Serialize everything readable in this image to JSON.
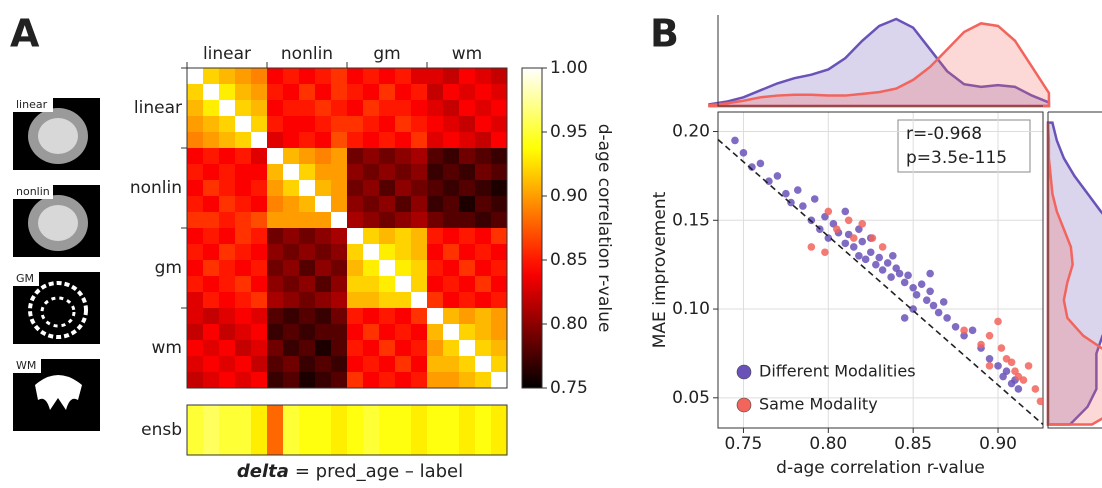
{
  "panel_labels": [
    "A",
    "B"
  ],
  "thumbnails": [
    "linear",
    "nonlin",
    "GM",
    "WM"
  ],
  "chart_data": [
    {
      "type": "heatmap",
      "row_labels": [
        "linear",
        "nonlin",
        "gm",
        "wm"
      ],
      "col_labels": [
        "linear",
        "nonlin",
        "gm",
        "wm"
      ],
      "matrix": [
        [
          1,
          0.92,
          0.91,
          0.9,
          0.89,
          0.84,
          0.85,
          0.84,
          0.85,
          0.86,
          0.84,
          0.85,
          0.84,
          0.85,
          0.83,
          0.83,
          0.82,
          0.84,
          0.83,
          0.82
        ],
        [
          0.92,
          1,
          0.93,
          0.91,
          0.9,
          0.85,
          0.84,
          0.86,
          0.84,
          0.86,
          0.85,
          0.84,
          0.86,
          0.84,
          0.85,
          0.82,
          0.84,
          0.83,
          0.84,
          0.83
        ],
        [
          0.91,
          0.93,
          1,
          0.92,
          0.91,
          0.84,
          0.85,
          0.85,
          0.86,
          0.85,
          0.84,
          0.86,
          0.85,
          0.85,
          0.84,
          0.83,
          0.82,
          0.84,
          0.83,
          0.84
        ],
        [
          0.9,
          0.91,
          0.92,
          1,
          0.92,
          0.85,
          0.84,
          0.84,
          0.85,
          0.86,
          0.86,
          0.85,
          0.84,
          0.86,
          0.85,
          0.84,
          0.83,
          0.82,
          0.84,
          0.83
        ],
        [
          0.89,
          0.9,
          0.91,
          0.92,
          1,
          0.83,
          0.84,
          0.85,
          0.84,
          0.87,
          0.85,
          0.84,
          0.85,
          0.84,
          0.86,
          0.83,
          0.84,
          0.83,
          0.82,
          0.84
        ],
        [
          0.84,
          0.85,
          0.84,
          0.85,
          0.83,
          1,
          0.91,
          0.9,
          0.89,
          0.9,
          0.79,
          0.8,
          0.79,
          0.8,
          0.81,
          0.78,
          0.77,
          0.79,
          0.78,
          0.77
        ],
        [
          0.85,
          0.84,
          0.85,
          0.84,
          0.84,
          0.91,
          1,
          0.92,
          0.9,
          0.9,
          0.8,
          0.79,
          0.8,
          0.79,
          0.8,
          0.77,
          0.78,
          0.77,
          0.79,
          0.78
        ],
        [
          0.84,
          0.86,
          0.85,
          0.84,
          0.85,
          0.9,
          0.92,
          1,
          0.91,
          0.9,
          0.79,
          0.8,
          0.78,
          0.8,
          0.79,
          0.78,
          0.77,
          0.78,
          0.77,
          0.76
        ],
        [
          0.85,
          0.84,
          0.86,
          0.85,
          0.84,
          0.89,
          0.9,
          0.91,
          1,
          0.9,
          0.8,
          0.79,
          0.8,
          0.78,
          0.8,
          0.77,
          0.78,
          0.76,
          0.78,
          0.77
        ],
        [
          0.86,
          0.86,
          0.85,
          0.86,
          0.87,
          0.9,
          0.9,
          0.9,
          0.9,
          1,
          0.81,
          0.8,
          0.79,
          0.8,
          0.81,
          0.79,
          0.78,
          0.78,
          0.77,
          0.78
        ],
        [
          0.84,
          0.85,
          0.84,
          0.86,
          0.85,
          0.79,
          0.8,
          0.79,
          0.8,
          0.81,
          1,
          0.92,
          0.91,
          0.92,
          0.91,
          0.85,
          0.84,
          0.85,
          0.84,
          0.86
        ],
        [
          0.85,
          0.84,
          0.86,
          0.85,
          0.84,
          0.8,
          0.79,
          0.8,
          0.79,
          0.8,
          0.92,
          1,
          0.93,
          0.92,
          0.91,
          0.84,
          0.86,
          0.84,
          0.85,
          0.84
        ],
        [
          0.84,
          0.86,
          0.85,
          0.84,
          0.85,
          0.79,
          0.8,
          0.78,
          0.8,
          0.79,
          0.91,
          0.93,
          1,
          0.93,
          0.92,
          0.85,
          0.84,
          0.86,
          0.84,
          0.85
        ],
        [
          0.85,
          0.84,
          0.85,
          0.86,
          0.84,
          0.8,
          0.79,
          0.8,
          0.78,
          0.8,
          0.92,
          0.92,
          0.93,
          1,
          0.92,
          0.84,
          0.85,
          0.84,
          0.86,
          0.84
        ],
        [
          0.83,
          0.85,
          0.84,
          0.85,
          0.86,
          0.81,
          0.8,
          0.79,
          0.8,
          0.81,
          0.91,
          0.91,
          0.92,
          0.92,
          1,
          0.86,
          0.84,
          0.85,
          0.84,
          0.85
        ],
        [
          0.83,
          0.82,
          0.83,
          0.84,
          0.83,
          0.78,
          0.77,
          0.78,
          0.77,
          0.79,
          0.85,
          0.84,
          0.85,
          0.84,
          0.86,
          1,
          0.91,
          0.9,
          0.91,
          0.9
        ],
        [
          0.82,
          0.84,
          0.82,
          0.83,
          0.84,
          0.77,
          0.78,
          0.77,
          0.78,
          0.78,
          0.84,
          0.86,
          0.84,
          0.85,
          0.84,
          0.91,
          1,
          0.92,
          0.91,
          0.9
        ],
        [
          0.84,
          0.83,
          0.84,
          0.82,
          0.83,
          0.79,
          0.77,
          0.78,
          0.76,
          0.78,
          0.85,
          0.84,
          0.86,
          0.84,
          0.85,
          0.9,
          0.92,
          1,
          0.92,
          0.91
        ],
        [
          0.83,
          0.84,
          0.83,
          0.84,
          0.82,
          0.78,
          0.79,
          0.77,
          0.78,
          0.77,
          0.84,
          0.85,
          0.84,
          0.86,
          0.84,
          0.91,
          0.91,
          0.92,
          1,
          0.92
        ],
        [
          0.82,
          0.83,
          0.84,
          0.83,
          0.84,
          0.77,
          0.78,
          0.76,
          0.77,
          0.78,
          0.86,
          0.84,
          0.85,
          0.84,
          0.85,
          0.9,
          0.9,
          0.91,
          0.92,
          1
        ]
      ],
      "ensemble_label": "ensb",
      "ensemble": [
        0.95,
        0.96,
        0.95,
        0.95,
        0.93,
        0.88,
        0.95,
        0.94,
        0.94,
        0.93,
        0.94,
        0.95,
        0.94,
        0.94,
        0.93,
        0.94,
        0.94,
        0.93,
        0.94,
        0.93
      ],
      "colormap": "hot",
      "colorbar_label": "d-age correlation r-value",
      "clim": [
        0.75,
        1.0
      ],
      "cticks": [
        0.75,
        {
          "value": 0.8,
          "label": "0.80"
        },
        0.85,
        {
          "value": 0.9,
          "label": "0.90"
        },
        0.95,
        {
          "value": 1,
          "label": "1.00"
        }
      ],
      "caption_emphasis": "delta",
      "caption": "= pred_age – label"
    },
    {
      "type": "scatter",
      "xlabel": "d-age correlation r-value",
      "ylabel": "MAE improvement",
      "xlim": [
        0.735,
        0.9265
      ],
      "ylim": [
        0.033,
        0.211
      ],
      "xticks": [
        0.75,
        {
          "value": 0.8,
          "label": "0.80"
        },
        0.85,
        {
          "value": 0.9,
          "label": "0.90"
        }
      ],
      "yticks": [
        0.05,
        {
          "value": 0.1,
          "label": "0.10"
        },
        0.15,
        {
          "value": 0.2,
          "label": "0.20"
        }
      ],
      "grid": true,
      "legend": "lower left",
      "annotation": [
        "r=-0.968",
        "p=3.5e-115"
      ],
      "fit_line": {
        "x": [
          0.735,
          0.9265
        ],
        "y": [
          0.1955,
          0.035
        ]
      },
      "series": [
        {
          "name": "Different Modalities",
          "color": "#6a52b8",
          "x": [
            0.745,
            0.75,
            0.755,
            0.76,
            0.765,
            0.77,
            0.775,
            0.778,
            0.782,
            0.785,
            0.79,
            0.792,
            0.795,
            0.798,
            0.8,
            0.803,
            0.806,
            0.81,
            0.812,
            0.815,
            0.818,
            0.82,
            0.822,
            0.825,
            0.828,
            0.83,
            0.832,
            0.835,
            0.837,
            0.84,
            0.842,
            0.845,
            0.847,
            0.85,
            0.852,
            0.855,
            0.858,
            0.86,
            0.862,
            0.865,
            0.868,
            0.87,
            0.875,
            0.88,
            0.885,
            0.89,
            0.895,
            0.9,
            0.903,
            0.905,
            0.908,
            0.91,
            0.912,
            0.838,
            0.825,
            0.85,
            0.818,
            0.86,
            0.81,
            0.845
          ],
          "y": [
            0.195,
            0.188,
            0.18,
            0.182,
            0.172,
            0.175,
            0.165,
            0.16,
            0.167,
            0.158,
            0.15,
            0.162,
            0.145,
            0.152,
            0.14,
            0.148,
            0.143,
            0.137,
            0.142,
            0.135,
            0.13,
            0.138,
            0.128,
            0.132,
            0.125,
            0.129,
            0.122,
            0.126,
            0.118,
            0.123,
            0.12,
            0.115,
            0.119,
            0.112,
            0.108,
            0.114,
            0.105,
            0.11,
            0.102,
            0.098,
            0.104,
            0.095,
            0.09,
            0.085,
            0.088,
            0.078,
            0.072,
            0.068,
            0.062,
            0.065,
            0.058,
            0.06,
            0.055,
            0.13,
            0.14,
            0.1,
            0.145,
            0.12,
            0.155,
            0.095
          ]
        },
        {
          "name": "Same Modality",
          "color": "#f2645c",
          "x": [
            0.8,
            0.805,
            0.812,
            0.815,
            0.82,
            0.79,
            0.798,
            0.826,
            0.832,
            0.88,
            0.89,
            0.895,
            0.9,
            0.902,
            0.905,
            0.908,
            0.91,
            0.912,
            0.915,
            0.918,
            0.922,
            0.925,
            0.895
          ],
          "y": [
            0.155,
            0.145,
            0.15,
            0.14,
            0.148,
            0.135,
            0.132,
            0.14,
            0.135,
            0.088,
            0.08,
            0.085,
            0.093,
            0.078,
            0.072,
            0.07,
            0.065,
            0.062,
            0.06,
            0.068,
            0.055,
            0.048,
            0.068
          ]
        }
      ],
      "x_density": {
        "grid": [
          0.73,
          0.74,
          0.75,
          0.76,
          0.77,
          0.78,
          0.79,
          0.8,
          0.81,
          0.82,
          0.83,
          0.84,
          0.85,
          0.86,
          0.87,
          0.88,
          0.89,
          0.9,
          0.91,
          0.92,
          0.93
        ],
        "series": [
          [
            0.02,
            0.05,
            0.1,
            0.18,
            0.26,
            0.32,
            0.36,
            0.42,
            0.55,
            0.75,
            0.92,
            1.0,
            0.9,
            0.65,
            0.4,
            0.25,
            0.22,
            0.24,
            0.22,
            0.12,
            0.04
          ],
          [
            0.01,
            0.03,
            0.06,
            0.1,
            0.12,
            0.13,
            0.13,
            0.12,
            0.12,
            0.14,
            0.16,
            0.2,
            0.3,
            0.45,
            0.65,
            0.85,
            0.95,
            0.92,
            0.75,
            0.45,
            0.15
          ]
        ]
      },
      "y_density": {
        "grid": [
          0.035,
          0.045,
          0.055,
          0.065,
          0.075,
          0.085,
          0.095,
          0.105,
          0.115,
          0.125,
          0.135,
          0.145,
          0.155,
          0.165,
          0.175,
          0.185,
          0.195,
          0.205
        ],
        "series": [
          [
            0.25,
            0.45,
            0.55,
            0.55,
            0.55,
            0.62,
            0.75,
            0.88,
            0.97,
            1.0,
            0.92,
            0.78,
            0.6,
            0.45,
            0.3,
            0.18,
            0.1,
            0.05
          ],
          [
            0.5,
            0.85,
            1.0,
            0.95,
            0.7,
            0.4,
            0.22,
            0.18,
            0.22,
            0.28,
            0.26,
            0.18,
            0.1,
            0.05,
            0.03,
            0.01,
            0.01,
            0
          ]
        ]
      }
    }
  ]
}
